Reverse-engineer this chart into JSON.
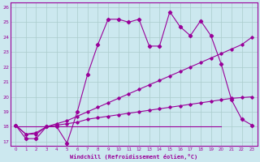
{
  "xlabel": "Windchill (Refroidissement éolien,°C)",
  "xlim": [
    -0.5,
    23.5
  ],
  "ylim": [
    16.7,
    26.3
  ],
  "xticks": [
    0,
    1,
    2,
    3,
    4,
    5,
    6,
    7,
    8,
    9,
    10,
    11,
    12,
    13,
    14,
    15,
    16,
    17,
    18,
    19,
    20,
    21,
    22,
    23
  ],
  "yticks": [
    17,
    18,
    19,
    20,
    21,
    22,
    23,
    24,
    25,
    26
  ],
  "background_color": "#cce8ef",
  "grid_color": "#aacccc",
  "line_color": "#990099",
  "line1_x": [
    0,
    1,
    2,
    3,
    4,
    5,
    6,
    7,
    8,
    9,
    10,
    11,
    12,
    13,
    14,
    15,
    16,
    17,
    18,
    19,
    20,
    21,
    22,
    23
  ],
  "line1_y": [
    18.1,
    17.2,
    17.2,
    18.0,
    18.0,
    16.9,
    19.0,
    21.5,
    23.5,
    25.2,
    25.2,
    25.0,
    25.2,
    23.4,
    23.4,
    25.7,
    24.7,
    24.1,
    25.1,
    24.1,
    22.2,
    19.8,
    18.5,
    18.1
  ],
  "line2_x": [
    0,
    1,
    2,
    3,
    4,
    5,
    6,
    7,
    8,
    9,
    10,
    11,
    12,
    13,
    14,
    15,
    16,
    17,
    18,
    19,
    20,
    21,
    22,
    23
  ],
  "line2_y": [
    18.1,
    17.5,
    17.6,
    18.0,
    18.2,
    18.4,
    18.7,
    19.0,
    19.3,
    19.6,
    19.9,
    20.2,
    20.5,
    20.8,
    21.1,
    21.4,
    21.7,
    22.0,
    22.3,
    22.6,
    22.9,
    23.2,
    23.5,
    24.0
  ],
  "line3_x": [
    0,
    1,
    2,
    3,
    4,
    5,
    6,
    7,
    8,
    9,
    10,
    11,
    12,
    13,
    14,
    15,
    16,
    17,
    18,
    19,
    20,
    21,
    22,
    23
  ],
  "line3_y": [
    18.1,
    17.5,
    17.5,
    18.0,
    18.1,
    18.2,
    18.3,
    18.5,
    18.6,
    18.7,
    18.8,
    18.9,
    19.0,
    19.1,
    19.2,
    19.3,
    19.4,
    19.5,
    19.6,
    19.7,
    19.8,
    19.9,
    19.95,
    20.0
  ],
  "line4_x": [
    0,
    20
  ],
  "line4_y": [
    18.0,
    18.0
  ]
}
